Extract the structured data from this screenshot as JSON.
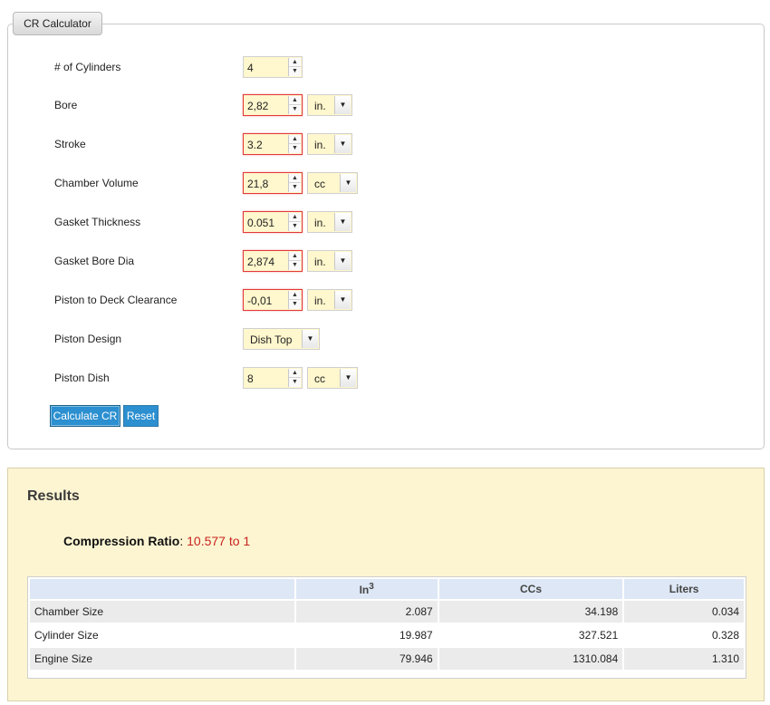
{
  "calculator": {
    "tab_label": "CR Calculator",
    "fields": [
      {
        "label": "# of Cylinders",
        "value": "4"
      },
      {
        "label": "Bore",
        "value": "2,82",
        "unit": "in."
      },
      {
        "label": "Stroke",
        "value": "3.2",
        "unit": "in."
      },
      {
        "label": "Chamber Volume",
        "value": "21,8",
        "unit": "cc"
      },
      {
        "label": "Gasket Thickness",
        "value": "0.051",
        "unit": "in."
      },
      {
        "label": "Gasket Bore Dia",
        "value": "2,874",
        "unit": "in."
      },
      {
        "label": "Piston to Deck Clearance",
        "value": "-0,01",
        "unit": "in."
      },
      {
        "label": "Piston Design",
        "value": "Dish Top"
      },
      {
        "label": "Piston Dish",
        "value": "8",
        "unit": "cc"
      }
    ],
    "calculate_label": "Calculate CR",
    "reset_label": "Reset"
  },
  "results": {
    "title": "Results",
    "cr_label": "Compression Ratio",
    "cr_value": "10.577 to 1",
    "table": {
      "headers": [
        "",
        "In",
        "CCs",
        "Liters"
      ],
      "in_superscript": "3",
      "rows": [
        {
          "name": "Chamber Size",
          "in3": "2.087",
          "ccs": "34.198",
          "liters": "0.034"
        },
        {
          "name": "Cylinder Size",
          "in3": "19.987",
          "ccs": "327.521",
          "liters": "0.328"
        },
        {
          "name": "Engine Size",
          "in3": "79.946",
          "ccs": "1310.084",
          "liters": "1.310"
        }
      ]
    }
  },
  "colors": {
    "input_bg": "#fff7cd",
    "error_border": "#e23a3a",
    "button_bg": "#2b8fd0",
    "results_bg": "#fdf5d2",
    "cr_value": "#c8231f",
    "table_header_bg": "#dde7f5"
  }
}
